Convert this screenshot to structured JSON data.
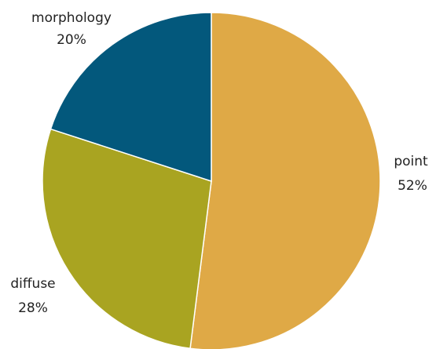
{
  "chart_data": {
    "type": "pie",
    "categories": [
      "point",
      "diffuse",
      "morphology"
    ],
    "values": [
      52,
      28,
      20
    ],
    "value_labels": [
      "52%",
      "28%",
      "20%"
    ],
    "colors": [
      "#DFA946",
      "#A9A421",
      "#03587C"
    ],
    "legend": "none"
  }
}
